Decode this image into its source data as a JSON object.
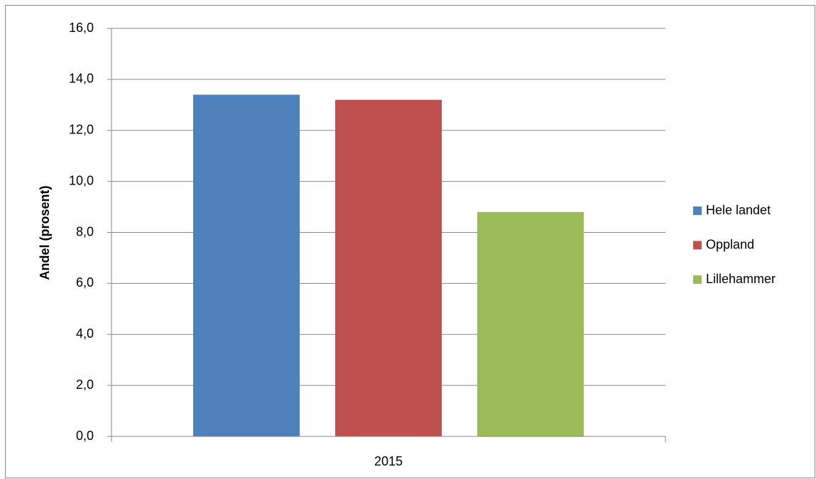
{
  "chart_data": {
    "type": "bar",
    "y_label": "Andel (prosent)",
    "categories": [
      "2015"
    ],
    "series": [
      {
        "name": "Hele landet",
        "color": "#4f81bd",
        "values": [
          13.4
        ]
      },
      {
        "name": "Oppland",
        "color": "#c0504d",
        "values": [
          13.2
        ]
      },
      {
        "name": "Lillehammer",
        "color": "#9bbb59",
        "values": [
          8.8
        ]
      }
    ],
    "ylim": [
      0,
      16
    ],
    "yticks": [
      {
        "value": 0,
        "label": "0,0"
      },
      {
        "value": 2,
        "label": "2,0"
      },
      {
        "value": 4,
        "label": "4,0"
      },
      {
        "value": 6,
        "label": "6,0"
      },
      {
        "value": 8,
        "label": "8,0"
      },
      {
        "value": 10,
        "label": "10,0"
      },
      {
        "value": 12,
        "label": "12,0"
      },
      {
        "value": 14,
        "label": "14,0"
      },
      {
        "value": 16,
        "label": "16,0"
      }
    ],
    "grid": true,
    "legend": "right"
  }
}
